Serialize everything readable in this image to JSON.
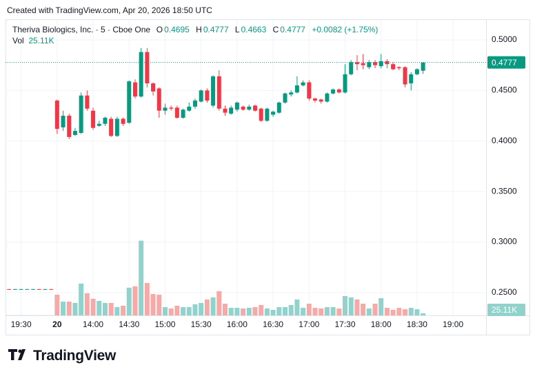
{
  "chart_data": {
    "type": "candlestick",
    "created": "Created with TradingView.com, Apr 20, 2026 18:50 UTC",
    "symbol": "Theriva Biologics, Inc. · 5 · Cboe One",
    "ohlc_labels": [
      "O",
      "H",
      "L",
      "C"
    ],
    "change": "+0.0082 (+1.75%)",
    "volume_name": "Vol",
    "last_volume_label": "25.11K",
    "brand": "TradingView",
    "categories": [
      null,
      null,
      null,
      null,
      null,
      null,
      null,
      null,
      null,
      null,
      null,
      null,
      null,
      null,
      null,
      null,
      null,
      null,
      null,
      null,
      null,
      null,
      null,
      null,
      null,
      null,
      null,
      null,
      null,
      null,
      null,
      null,
      null,
      null,
      null,
      null,
      null,
      null,
      null,
      null,
      null,
      null,
      null,
      null,
      null,
      null,
      null,
      null,
      null,
      null,
      null,
      null,
      null,
      null,
      null,
      null,
      null,
      null,
      null,
      null,
      null,
      null,
      null,
      null,
      null,
      null,
      null,
      null,
      null,
      null
    ],
    "open": [
      0.2535,
      0.253,
      0.253,
      0.253,
      0.253,
      0.2535,
      0.253,
      0.2535,
      0.44,
      0.4135,
      0.425,
      0.406,
      0.408,
      0.445,
      0.43,
      0.415,
      0.417,
      0.422,
      0.405,
      0.422,
      0.418,
      0.458,
      0.444,
      0.488,
      0.457,
      0.452,
      0.43,
      0.433,
      0.433,
      0.423,
      0.43,
      0.434,
      0.439,
      0.45,
      0.435,
      0.464,
      0.432,
      0.427,
      0.431,
      0.434,
      0.431,
      0.435,
      0.432,
      0.42,
      0.426,
      0.428,
      0.438,
      0.446,
      0.448,
      0.455,
      0.458,
      0.442,
      0.441,
      0.439,
      0.447,
      0.451,
      0.448,
      0.466,
      0.478,
      0.477,
      0.473,
      0.478,
      0.474,
      0.479,
      0.476,
      0.473,
      0.473,
      0.457,
      0.466,
      0.4695
    ],
    "high": [
      0.2537,
      0.2537,
      0.2537,
      0.2537,
      0.2537,
      0.2537,
      0.2537,
      0.2537,
      0.441,
      0.43,
      0.427,
      0.413,
      0.448,
      0.45,
      0.433,
      0.42,
      0.424,
      0.424,
      0.424,
      0.423,
      0.46,
      0.461,
      0.492,
      0.492,
      0.458,
      0.453,
      0.437,
      0.435,
      0.435,
      0.432,
      0.438,
      0.442,
      0.451,
      0.452,
      0.465,
      0.47,
      0.435,
      0.435,
      0.439,
      0.435,
      0.436,
      0.436,
      0.433,
      0.433,
      0.43,
      0.439,
      0.448,
      0.45,
      0.464,
      0.46,
      0.46,
      0.443,
      0.442,
      0.448,
      0.452,
      0.452,
      0.476,
      0.48,
      0.485,
      0.486,
      0.48,
      0.48,
      0.486,
      0.481,
      0.478,
      0.474,
      0.474,
      0.468,
      0.472,
      0.4777
    ],
    "low": [
      0.2528,
      0.2528,
      0.2528,
      0.2528,
      0.2528,
      0.2528,
      0.2528,
      0.2528,
      0.407,
      0.41,
      0.402,
      0.405,
      0.407,
      0.43,
      0.411,
      0.414,
      0.415,
      0.404,
      0.404,
      0.415,
      0.417,
      0.442,
      0.443,
      0.453,
      0.445,
      0.423,
      0.426,
      0.43,
      0.422,
      0.422,
      0.429,
      0.432,
      0.438,
      0.438,
      0.433,
      0.43,
      0.425,
      0.426,
      0.429,
      0.43,
      0.43,
      0.429,
      0.419,
      0.419,
      0.424,
      0.427,
      0.437,
      0.444,
      0.447,
      0.454,
      0.44,
      0.438,
      0.437,
      0.438,
      0.446,
      0.447,
      0.447,
      0.465,
      0.47,
      0.471,
      0.471,
      0.472,
      0.472,
      0.472,
      0.47,
      0.47,
      0.453,
      0.45,
      0.465,
      0.4663
    ],
    "close": [
      0.253,
      0.2535,
      0.2535,
      0.2535,
      0.2535,
      0.253,
      0.2535,
      0.253,
      0.412,
      0.425,
      0.404,
      0.41,
      0.445,
      0.432,
      0.413,
      0.417,
      0.423,
      0.405,
      0.422,
      0.417,
      0.459,
      0.444,
      0.488,
      0.457,
      0.449,
      0.43,
      0.433,
      0.432,
      0.423,
      0.431,
      0.434,
      0.44,
      0.45,
      0.44,
      0.464,
      0.432,
      0.428,
      0.433,
      0.438,
      0.431,
      0.434,
      0.43,
      0.42,
      0.432,
      0.429,
      0.438,
      0.447,
      0.448,
      0.455,
      0.458,
      0.442,
      0.44,
      0.439,
      0.447,
      0.451,
      0.448,
      0.466,
      0.478,
      0.476,
      0.475,
      0.478,
      0.475,
      0.479,
      0.476,
      0.471,
      0.472,
      0.456,
      0.466,
      0.471,
      0.4777
    ],
    "volume": [
      2000,
      2000,
      2000,
      2000,
      2000,
      2000,
      2000,
      2000,
      251000,
      167000,
      167000,
      151000,
      385000,
      268000,
      201000,
      176000,
      151000,
      151000,
      100000,
      117000,
      335000,
      352000,
      904000,
      393000,
      259000,
      251000,
      100000,
      84000,
      117000,
      100000,
      100000,
      134000,
      151000,
      193000,
      218000,
      293000,
      142000,
      92000,
      92000,
      84000,
      92000,
      100000,
      126000,
      84000,
      67000,
      100000,
      100000,
      126000,
      193000,
      92000,
      142000,
      92000,
      84000,
      100000,
      100000,
      84000,
      234000,
      218000,
      193000,
      142000,
      84000,
      142000,
      209000,
      92000,
      67000,
      92000,
      75000,
      92000,
      75000,
      25110
    ],
    "up_color": "#089981",
    "down_color": "#f23645",
    "up_volume_color": "#92d2cc",
    "down_volume_color": "#f7a9a7",
    "xlim": [
      -0.6,
      79.5
    ],
    "xticks": [
      {
        "value": 2,
        "label": "19:30"
      },
      {
        "value": 8,
        "label": "20",
        "bold": true
      },
      {
        "value": 14,
        "label": "14:00"
      },
      {
        "value": 20,
        "label": "14:30"
      },
      {
        "value": 26,
        "label": "15:00"
      },
      {
        "value": 32,
        "label": "15:30"
      },
      {
        "value": 38,
        "label": "16:00"
      },
      {
        "value": 44,
        "label": "16:30"
      },
      {
        "value": 50,
        "label": "17:00"
      },
      {
        "value": 56,
        "label": "17:30"
      },
      {
        "value": 62,
        "label": "18:00"
      },
      {
        "value": 68,
        "label": "18:30"
      },
      {
        "value": 74,
        "label": "19:00"
      }
    ],
    "ylim": [
      0.2275,
      0.5204
    ],
    "yticks": [
      {
        "value": 0.25,
        "label": "0.2500"
      },
      {
        "value": 0.3,
        "label": "0.3000"
      },
      {
        "value": 0.35,
        "label": "0.3500"
      },
      {
        "value": 0.4,
        "label": "0.4000"
      },
      {
        "value": 0.45,
        "label": "0.4500"
      },
      {
        "value": 0.5,
        "label": "0.5000"
      }
    ],
    "volume_lim": [
      0,
      1200000
    ],
    "grid": true
  }
}
